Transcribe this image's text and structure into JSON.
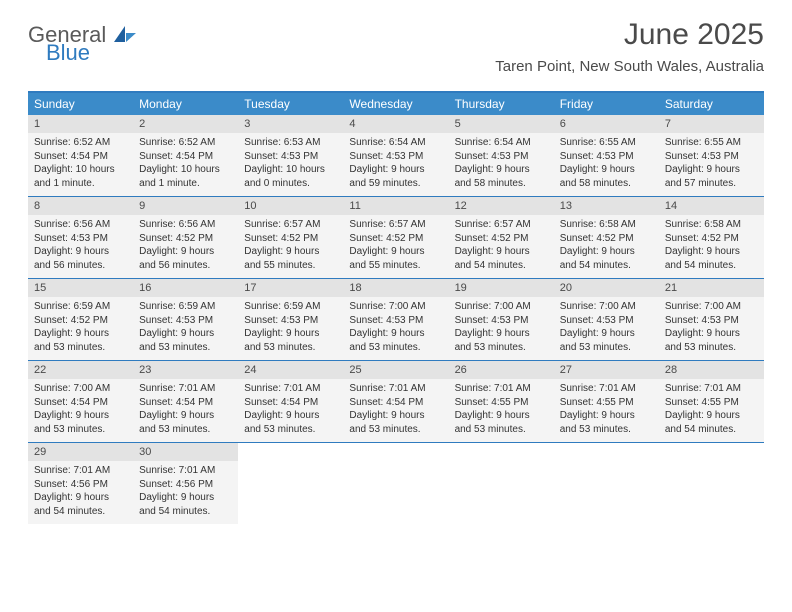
{
  "colors": {
    "header_bar": "#3b8bc9",
    "border": "#2f7bbf",
    "daynum_bg": "#e3e3e3",
    "daybody_bg": "#f4f4f4",
    "text_dark": "#4a4a4a",
    "logo_gray": "#5a5a5a",
    "logo_blue": "#2f7bbf"
  },
  "logo": {
    "general": "General",
    "blue": "Blue"
  },
  "title": "June 2025",
  "location": "Taren Point, New South Wales, Australia",
  "day_names": [
    "Sunday",
    "Monday",
    "Tuesday",
    "Wednesday",
    "Thursday",
    "Friday",
    "Saturday"
  ],
  "weeks": [
    [
      {
        "n": "1",
        "sunrise": "Sunrise: 6:52 AM",
        "sunset": "Sunset: 4:54 PM",
        "day1": "Daylight: 10 hours",
        "day2": "and 1 minute."
      },
      {
        "n": "2",
        "sunrise": "Sunrise: 6:52 AM",
        "sunset": "Sunset: 4:54 PM",
        "day1": "Daylight: 10 hours",
        "day2": "and 1 minute."
      },
      {
        "n": "3",
        "sunrise": "Sunrise: 6:53 AM",
        "sunset": "Sunset: 4:53 PM",
        "day1": "Daylight: 10 hours",
        "day2": "and 0 minutes."
      },
      {
        "n": "4",
        "sunrise": "Sunrise: 6:54 AM",
        "sunset": "Sunset: 4:53 PM",
        "day1": "Daylight: 9 hours",
        "day2": "and 59 minutes."
      },
      {
        "n": "5",
        "sunrise": "Sunrise: 6:54 AM",
        "sunset": "Sunset: 4:53 PM",
        "day1": "Daylight: 9 hours",
        "day2": "and 58 minutes."
      },
      {
        "n": "6",
        "sunrise": "Sunrise: 6:55 AM",
        "sunset": "Sunset: 4:53 PM",
        "day1": "Daylight: 9 hours",
        "day2": "and 58 minutes."
      },
      {
        "n": "7",
        "sunrise": "Sunrise: 6:55 AM",
        "sunset": "Sunset: 4:53 PM",
        "day1": "Daylight: 9 hours",
        "day2": "and 57 minutes."
      }
    ],
    [
      {
        "n": "8",
        "sunrise": "Sunrise: 6:56 AM",
        "sunset": "Sunset: 4:53 PM",
        "day1": "Daylight: 9 hours",
        "day2": "and 56 minutes."
      },
      {
        "n": "9",
        "sunrise": "Sunrise: 6:56 AM",
        "sunset": "Sunset: 4:52 PM",
        "day1": "Daylight: 9 hours",
        "day2": "and 56 minutes."
      },
      {
        "n": "10",
        "sunrise": "Sunrise: 6:57 AM",
        "sunset": "Sunset: 4:52 PM",
        "day1": "Daylight: 9 hours",
        "day2": "and 55 minutes."
      },
      {
        "n": "11",
        "sunrise": "Sunrise: 6:57 AM",
        "sunset": "Sunset: 4:52 PM",
        "day1": "Daylight: 9 hours",
        "day2": "and 55 minutes."
      },
      {
        "n": "12",
        "sunrise": "Sunrise: 6:57 AM",
        "sunset": "Sunset: 4:52 PM",
        "day1": "Daylight: 9 hours",
        "day2": "and 54 minutes."
      },
      {
        "n": "13",
        "sunrise": "Sunrise: 6:58 AM",
        "sunset": "Sunset: 4:52 PM",
        "day1": "Daylight: 9 hours",
        "day2": "and 54 minutes."
      },
      {
        "n": "14",
        "sunrise": "Sunrise: 6:58 AM",
        "sunset": "Sunset: 4:52 PM",
        "day1": "Daylight: 9 hours",
        "day2": "and 54 minutes."
      }
    ],
    [
      {
        "n": "15",
        "sunrise": "Sunrise: 6:59 AM",
        "sunset": "Sunset: 4:52 PM",
        "day1": "Daylight: 9 hours",
        "day2": "and 53 minutes."
      },
      {
        "n": "16",
        "sunrise": "Sunrise: 6:59 AM",
        "sunset": "Sunset: 4:53 PM",
        "day1": "Daylight: 9 hours",
        "day2": "and 53 minutes."
      },
      {
        "n": "17",
        "sunrise": "Sunrise: 6:59 AM",
        "sunset": "Sunset: 4:53 PM",
        "day1": "Daylight: 9 hours",
        "day2": "and 53 minutes."
      },
      {
        "n": "18",
        "sunrise": "Sunrise: 7:00 AM",
        "sunset": "Sunset: 4:53 PM",
        "day1": "Daylight: 9 hours",
        "day2": "and 53 minutes."
      },
      {
        "n": "19",
        "sunrise": "Sunrise: 7:00 AM",
        "sunset": "Sunset: 4:53 PM",
        "day1": "Daylight: 9 hours",
        "day2": "and 53 minutes."
      },
      {
        "n": "20",
        "sunrise": "Sunrise: 7:00 AM",
        "sunset": "Sunset: 4:53 PM",
        "day1": "Daylight: 9 hours",
        "day2": "and 53 minutes."
      },
      {
        "n": "21",
        "sunrise": "Sunrise: 7:00 AM",
        "sunset": "Sunset: 4:53 PM",
        "day1": "Daylight: 9 hours",
        "day2": "and 53 minutes."
      }
    ],
    [
      {
        "n": "22",
        "sunrise": "Sunrise: 7:00 AM",
        "sunset": "Sunset: 4:54 PM",
        "day1": "Daylight: 9 hours",
        "day2": "and 53 minutes."
      },
      {
        "n": "23",
        "sunrise": "Sunrise: 7:01 AM",
        "sunset": "Sunset: 4:54 PM",
        "day1": "Daylight: 9 hours",
        "day2": "and 53 minutes."
      },
      {
        "n": "24",
        "sunrise": "Sunrise: 7:01 AM",
        "sunset": "Sunset: 4:54 PM",
        "day1": "Daylight: 9 hours",
        "day2": "and 53 minutes."
      },
      {
        "n": "25",
        "sunrise": "Sunrise: 7:01 AM",
        "sunset": "Sunset: 4:54 PM",
        "day1": "Daylight: 9 hours",
        "day2": "and 53 minutes."
      },
      {
        "n": "26",
        "sunrise": "Sunrise: 7:01 AM",
        "sunset": "Sunset: 4:55 PM",
        "day1": "Daylight: 9 hours",
        "day2": "and 53 minutes."
      },
      {
        "n": "27",
        "sunrise": "Sunrise: 7:01 AM",
        "sunset": "Sunset: 4:55 PM",
        "day1": "Daylight: 9 hours",
        "day2": "and 53 minutes."
      },
      {
        "n": "28",
        "sunrise": "Sunrise: 7:01 AM",
        "sunset": "Sunset: 4:55 PM",
        "day1": "Daylight: 9 hours",
        "day2": "and 54 minutes."
      }
    ],
    [
      {
        "n": "29",
        "sunrise": "Sunrise: 7:01 AM",
        "sunset": "Sunset: 4:56 PM",
        "day1": "Daylight: 9 hours",
        "day2": "and 54 minutes."
      },
      {
        "n": "30",
        "sunrise": "Sunrise: 7:01 AM",
        "sunset": "Sunset: 4:56 PM",
        "day1": "Daylight: 9 hours",
        "day2": "and 54 minutes."
      },
      {
        "empty": true
      },
      {
        "empty": true
      },
      {
        "empty": true
      },
      {
        "empty": true
      },
      {
        "empty": true
      }
    ]
  ]
}
